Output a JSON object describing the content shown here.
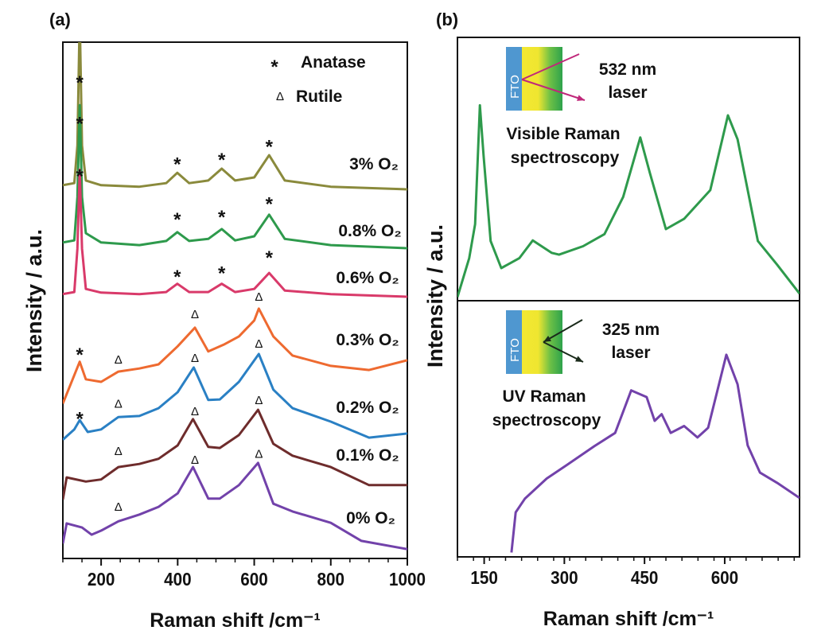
{
  "figure": {
    "panel_a_label": "(a)",
    "panel_b_label": "(b)"
  },
  "chart_data": [
    {
      "type": "line",
      "panel": "(a)",
      "xlabel": "Raman shift /cm⁻¹",
      "ylabel": "Intensity / a.u.",
      "xlim": [
        100,
        1000
      ],
      "ylim": [
        0,
        100
      ],
      "xticks": [
        200,
        400,
        600,
        800,
        1000
      ],
      "xtick_labels": [
        "200",
        "400",
        "600",
        "800",
        "1000"
      ],
      "minor_tick_step": 50,
      "grid": false,
      "legend": {
        "placement": "top-right",
        "entries": [
          {
            "symbol": "*",
            "label": "Anatase"
          },
          {
            "symbol": "Δ",
            "label": "Rutile"
          }
        ]
      },
      "series": [
        {
          "name": "3% O₂",
          "color": "#8a8a3c",
          "x": [
            100,
            130,
            138,
            144,
            150,
            160,
            200,
            300,
            370,
            399,
            430,
            480,
            515,
            550,
            600,
            639,
            680,
            800,
            1000
          ],
          "y": [
            72.3,
            72.7,
            80,
            105,
            80,
            73.2,
            72.3,
            72.0,
            72.7,
            74.7,
            72.7,
            73.2,
            75.5,
            73.2,
            73.8,
            78.1,
            73.2,
            72.0,
            71.5
          ]
        },
        {
          "name": "0.8% O₂",
          "color": "#2e9a4c",
          "x": [
            100,
            130,
            138,
            144,
            150,
            160,
            200,
            300,
            370,
            399,
            430,
            480,
            515,
            550,
            600,
            639,
            680,
            800,
            1000
          ],
          "y": [
            61.2,
            61.6,
            70,
            87.8,
            70,
            63.0,
            61.2,
            60.7,
            61.5,
            63.2,
            61.5,
            61.9,
            63.8,
            61.6,
            62.4,
            66.6,
            61.9,
            60.7,
            60.1
          ]
        },
        {
          "name": "0.6% O₂",
          "color": "#d93a6a",
          "x": [
            100,
            130,
            138,
            144,
            150,
            160,
            200,
            300,
            370,
            399,
            430,
            480,
            515,
            550,
            600,
            639,
            680,
            800,
            1000
          ],
          "y": [
            51.2,
            51.6,
            60,
            75.3,
            60,
            52.2,
            51.5,
            51.2,
            51.6,
            53.2,
            51.6,
            51.6,
            53.2,
            51.6,
            52.2,
            55.3,
            51.9,
            51.2,
            50.7
          ]
        },
        {
          "name": "0.3% O₂",
          "color": "#ee6a30",
          "x": [
            100,
            144,
            160,
            200,
            245,
            300,
            350,
            400,
            445,
            480,
            520,
            560,
            600,
            612,
            650,
            700,
            800,
            900,
            1000
          ],
          "y": [
            30.0,
            38.1,
            34.7,
            34.2,
            36.2,
            36.8,
            37.6,
            41.1,
            44.7,
            40.1,
            41.4,
            43.0,
            46.1,
            48.4,
            43.0,
            39.3,
            37.3,
            36.5,
            38.4
          ]
        },
        {
          "name": "0.2% O₂",
          "color": "#2a80c4",
          "x": [
            100,
            130,
            144,
            165,
            200,
            245,
            300,
            350,
            400,
            442,
            480,
            510,
            560,
            612,
            650,
            700,
            800,
            900,
            1000
          ],
          "y": [
            23.0,
            25.0,
            26.8,
            24.5,
            25.0,
            27.4,
            27.6,
            29.1,
            32.2,
            37.0,
            30.7,
            30.8,
            34.2,
            39.6,
            32.7,
            29.1,
            26.5,
            23.4,
            24.2
          ]
        },
        {
          "name": "0.1% O₂",
          "color": "#6e2c2c",
          "x": [
            100,
            110,
            160,
            200,
            245,
            300,
            350,
            400,
            440,
            480,
            510,
            560,
            610,
            650,
            700,
            800,
            900,
            1000
          ],
          "y": [
            11.4,
            15.7,
            14.9,
            15.3,
            17.7,
            18.3,
            19.3,
            21.9,
            27.0,
            21.6,
            21.4,
            23.9,
            28.8,
            22.2,
            19.9,
            17.7,
            14.2,
            14.2
          ]
        },
        {
          "name": "0% O₂",
          "color": "#7242aa",
          "x": [
            100,
            110,
            150,
            175,
            200,
            245,
            300,
            350,
            400,
            440,
            480,
            510,
            560,
            610,
            650,
            700,
            800,
            880,
            1000
          ],
          "y": [
            2.9,
            6.8,
            6.0,
            4.6,
            5.4,
            7.2,
            8.5,
            10.0,
            12.6,
            17.7,
            11.6,
            11.6,
            14.2,
            18.5,
            10.6,
            9.1,
            6.9,
            3.4,
            1.8
          ]
        }
      ],
      "annotations": [
        {
          "symbol": "*",
          "x": 144,
          "y": 93.1
        },
        {
          "symbol": "*",
          "x": 144,
          "y": 85.1
        },
        {
          "symbol": "*",
          "x": 144,
          "y": 75.0
        },
        {
          "symbol": "*",
          "x": 399,
          "y": 77.3
        },
        {
          "symbol": "*",
          "x": 515,
          "y": 78.1
        },
        {
          "symbol": "*",
          "x": 639,
          "y": 80.7
        },
        {
          "symbol": "*",
          "x": 399,
          "y": 66.6
        },
        {
          "symbol": "*",
          "x": 515,
          "y": 67.0
        },
        {
          "symbol": "*",
          "x": 639,
          "y": 69.6
        },
        {
          "symbol": "*",
          "x": 399,
          "y": 55.5
        },
        {
          "symbol": "*",
          "x": 515,
          "y": 56.2
        },
        {
          "symbol": "*",
          "x": 639,
          "y": 59.2
        },
        {
          "symbol": "*",
          "x": 144,
          "y": 40.4
        },
        {
          "symbol": "*",
          "x": 144,
          "y": 28.0
        },
        {
          "symbol": "Δ",
          "x": 245,
          "y": 38.5
        },
        {
          "symbol": "Δ",
          "x": 245,
          "y": 30.0
        },
        {
          "symbol": "Δ",
          "x": 245,
          "y": 20.8
        },
        {
          "symbol": "Δ",
          "x": 245,
          "y": 10.0
        },
        {
          "symbol": "Δ",
          "x": 445,
          "y": 47.3
        },
        {
          "symbol": "Δ",
          "x": 445,
          "y": 38.8
        },
        {
          "symbol": "Δ",
          "x": 445,
          "y": 28.5
        },
        {
          "symbol": "Δ",
          "x": 445,
          "y": 19.1
        },
        {
          "symbol": "Δ",
          "x": 612,
          "y": 50.7
        },
        {
          "symbol": "Δ",
          "x": 612,
          "y": 41.6
        },
        {
          "symbol": "Δ",
          "x": 612,
          "y": 30.7
        },
        {
          "symbol": "Δ",
          "x": 612,
          "y": 20.3
        }
      ]
    },
    {
      "type": "line",
      "panel": "(b) top",
      "xlim": [
        100,
        740
      ],
      "ylim": [
        0,
        100
      ],
      "grid": false,
      "series": [
        {
          "color": "#2e9a4c",
          "x": [
            100,
            122,
            133,
            142,
            149,
            162,
            182,
            216,
            241,
            276,
            290,
            335,
            375,
            410,
            442,
            460,
            490,
            524,
            573,
            606,
            624,
            662,
            698,
            740
          ],
          "y": [
            1.4,
            16.2,
            29.1,
            74.2,
            54.9,
            22.7,
            12.4,
            16.2,
            22.9,
            18.2,
            17.5,
            20.7,
            25.3,
            39.4,
            62.0,
            48.5,
            27.2,
            31.1,
            42.0,
            70.4,
            61.3,
            22.7,
            13.7,
            2.7
          ]
        }
      ],
      "inset": {
        "layer_label": "FTO",
        "laser_line1": "532 nm",
        "laser_line2": "laser",
        "arrow_color": "#c0287a",
        "caption_line1": "Visible Raman",
        "caption_line2": "spectroscopy"
      }
    },
    {
      "type": "line",
      "panel": "(b) bottom",
      "xlabel": "Raman shift /cm⁻¹",
      "ylabel": "Intensity / a.u.",
      "xlim": [
        100,
        740
      ],
      "ylim": [
        0,
        100
      ],
      "xticks": [
        150,
        300,
        450,
        600
      ],
      "xtick_labels": [
        "150",
        "300",
        "450",
        "600"
      ],
      "minor_tick_step": 30,
      "grid": false,
      "series": [
        {
          "color": "#7242aa",
          "x": [
            201,
            209,
            226,
            267,
            305,
            356,
            395,
            425,
            454,
            469,
            482,
            499,
            524,
            549,
            569,
            603,
            624,
            643,
            666,
            698,
            740
          ],
          "y": [
            1.7,
            17.4,
            22.7,
            30.6,
            35.9,
            43.2,
            48.4,
            65.0,
            62.4,
            53.1,
            55.7,
            48.4,
            51.1,
            46.6,
            50.4,
            78.9,
            67.4,
            43.5,
            32.9,
            28.9,
            23.0
          ]
        }
      ],
      "inset": {
        "layer_label": "FTO",
        "laser_line1": "325 nm",
        "laser_line2": "laser",
        "arrow_color": "#1a2a1a",
        "caption_line1": "UV Raman",
        "caption_line2": "spectroscopy"
      }
    }
  ]
}
